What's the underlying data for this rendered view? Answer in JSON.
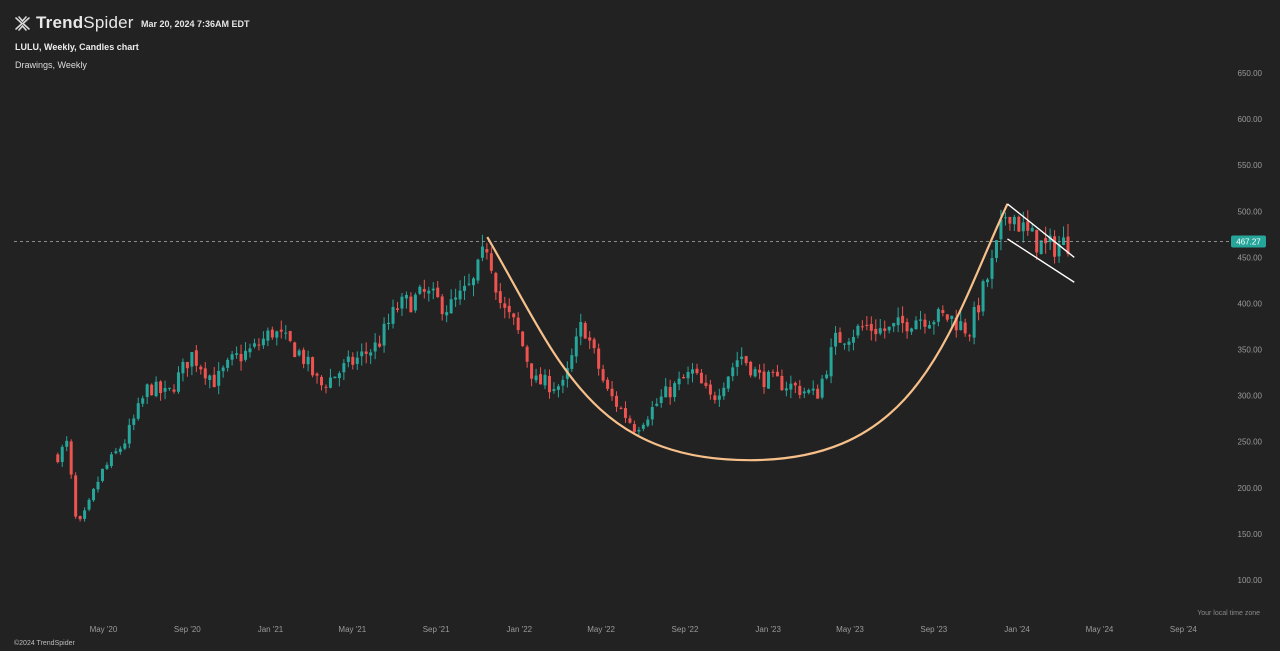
{
  "header": {
    "brand_prefix": "Trend",
    "brand_suffix": "Spider",
    "timestamp": "Mar 20, 2024 7:36AM EDT",
    "chart_title": "LULU, Weekly, Candles chart",
    "drawings_label": "Drawings, Weekly"
  },
  "footer": {
    "timezone_note": "Your local time zone",
    "copyright": "©2024 TrendSpider"
  },
  "colors": {
    "background": "#222222",
    "up_candle": "#26a69a",
    "down_candle": "#ef5350",
    "cup_curve": "#f7c08a",
    "channel_lines": "#ffffff",
    "price_badge": "#26a69a"
  },
  "chart_data": {
    "type": "candlestick",
    "symbol": "LULU",
    "interval": "Weekly",
    "price_axis_ticks": [
      "650.00",
      "600.00",
      "550.00",
      "500.00",
      "450.00",
      "400.00",
      "350.00",
      "300.00",
      "250.00",
      "200.00",
      "150.00",
      "100.00"
    ],
    "time_axis_ticks": [
      "May '20",
      "Sep '20",
      "Jan '21",
      "May '21",
      "Sep '21",
      "Jan '22",
      "May '22",
      "Sep '22",
      "Jan '23",
      "May '23",
      "Sep '23",
      "Jan '24",
      "May '24",
      "Sep '24"
    ],
    "ylim": [
      80,
      670
    ],
    "last_price": "467.27",
    "price_path": [
      [
        "2020-02-24",
        235
      ],
      [
        "2020-03-09",
        248
      ],
      [
        "2020-03-23",
        155
      ],
      [
        "2020-04-06",
        175
      ],
      [
        "2020-04-27",
        215
      ],
      [
        "2020-06-01",
        250
      ],
      [
        "2020-07-06",
        310
      ],
      [
        "2020-08-03",
        300
      ],
      [
        "2020-09-07",
        345
      ],
      [
        "2020-10-12",
        315
      ],
      [
        "2020-11-09",
        340
      ],
      [
        "2020-12-07",
        350
      ],
      [
        "2021-01-04",
        370
      ],
      [
        "2021-02-15",
        345
      ],
      [
        "2021-03-15",
        310
      ],
      [
        "2021-04-19",
        330
      ],
      [
        "2021-06-07",
        355
      ],
      [
        "2021-07-05",
        395
      ],
      [
        "2021-08-16",
        410
      ],
      [
        "2021-09-20",
        395
      ],
      [
        "2021-10-25",
        420
      ],
      [
        "2021-11-15",
        465
      ],
      [
        "2021-12-06",
        395
      ],
      [
        "2021-12-27",
        375
      ],
      [
        "2022-01-24",
        315
      ],
      [
        "2022-03-07",
        310
      ],
      [
        "2022-04-04",
        380
      ],
      [
        "2022-05-09",
        305
      ],
      [
        "2022-06-20",
        265
      ],
      [
        "2022-08-01",
        300
      ],
      [
        "2022-09-12",
        325
      ],
      [
        "2022-10-10",
        295
      ],
      [
        "2022-11-21",
        345
      ],
      [
        "2022-12-19",
        320
      ],
      [
        "2023-02-06",
        310
      ],
      [
        "2023-03-13",
        300
      ],
      [
        "2023-04-10",
        360
      ],
      [
        "2023-05-22",
        375
      ],
      [
        "2023-06-26",
        370
      ],
      [
        "2023-08-07",
        385
      ],
      [
        "2023-09-25",
        385
      ],
      [
        "2023-10-23",
        370
      ],
      [
        "2023-11-27",
        445
      ],
      [
        "2023-12-18",
        505
      ],
      [
        "2024-01-15",
        475
      ],
      [
        "2024-02-12",
        460
      ],
      [
        "2024-03-18",
        467
      ]
    ],
    "drawings": {
      "cup_curve": {
        "color": "orange",
        "start": [
          "2021-11-15",
          472
        ],
        "bottom": [
          "2022-12-05",
          230
        ],
        "end": [
          "2023-12-18",
          508
        ]
      },
      "down_channel_upper": {
        "start": [
          "2023-12-18",
          508
        ],
        "end": [
          "2024-03-25",
          450
        ]
      },
      "down_channel_lower": {
        "start": [
          "2023-12-18",
          470
        ],
        "end": [
          "2024-03-25",
          423
        ]
      }
    }
  }
}
